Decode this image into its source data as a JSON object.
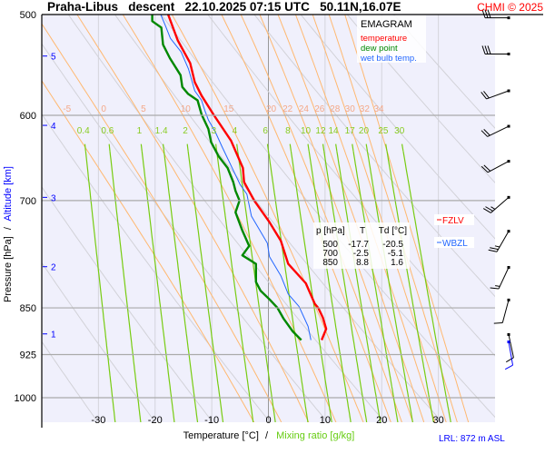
{
  "title": "Praha-Libus   descent   22.10.2025 07:15 UTC   50.11N,16.07E",
  "copyright": "CHMI © 2025",
  "legend": {
    "heading": "EMAGRAM",
    "items": [
      {
        "label": "temperature",
        "color": "#ff0000"
      },
      {
        "label": "dew point",
        "color": "#008800"
      },
      {
        "label": "wet bulb temp.",
        "color": "#2266ff"
      }
    ]
  },
  "table": {
    "headers": [
      "p [hPa]",
      "T",
      "Td [°C]"
    ],
    "rows": [
      [
        "500",
        "-17.7",
        "-20.5"
      ],
      [
        "700",
        "-2.5",
        "-5.1"
      ],
      [
        "850",
        "8.8",
        "1.6"
      ]
    ]
  },
  "levels": {
    "fzlv": {
      "label": "FZLV",
      "color": "#ff0000"
    },
    "wbzl": {
      "label": "WBZL",
      "color": "#2266ff"
    }
  },
  "lrl": "LRL: 872 m ASL",
  "chart_data": {
    "type": "line",
    "title": "Praha-Libus   descent   22.10.2025 07:15 UTC   50.11N,16.07E",
    "xlabel": "Temperature [°C]",
    "xlabel_sep": "/",
    "xlabel2": "Mixing ratio [g/kg]",
    "ylabel": "Pressure [hPa]",
    "ylabel_sep": "/",
    "ylabel2": "Altitude [km]",
    "xlim": [
      -40,
      40
    ],
    "ylim": [
      500,
      1070
    ],
    "y_scale": "log",
    "x_ticks": [
      -30,
      -20,
      -10,
      0,
      10,
      20,
      30
    ],
    "y_ticks": [
      500,
      600,
      700,
      850,
      925,
      1000
    ],
    "altitude_ticks": [
      {
        "km": "5",
        "p": 539
      },
      {
        "km": "4",
        "p": 611
      },
      {
        "km": "3",
        "p": 696
      },
      {
        "km": "2",
        "p": 789
      },
      {
        "km": "1",
        "p": 891
      }
    ],
    "pseudoadiabat_labels": [
      "-5",
      "0",
      "5",
      "10",
      "15",
      "20",
      "22",
      "24",
      "26",
      "28",
      "30",
      "32",
      "34"
    ],
    "mixing_ratio_labels": [
      "0.4",
      "0.6",
      "1",
      "1.4",
      "2",
      "3",
      "4",
      "6",
      "8",
      "10",
      "12",
      "14",
      "17",
      "20",
      "25",
      "30"
    ],
    "dry_adiabats_K": [
      230,
      240,
      250,
      260,
      270,
      280,
      290,
      300,
      310,
      320,
      330,
      340,
      350,
      360
    ],
    "series": [
      {
        "name": "temperature",
        "color": "#ff0000",
        "points": [
          [
            500,
            -17.7
          ],
          [
            524,
            -16.0
          ],
          [
            546,
            -13.8
          ],
          [
            565,
            -13.0
          ],
          [
            579,
            -11.8
          ],
          [
            600,
            -9.6
          ],
          [
            628,
            -6.6
          ],
          [
            660,
            -4.5
          ],
          [
            677,
            -4.3
          ],
          [
            700,
            -2.5
          ],
          [
            728,
            0.2
          ],
          [
            753,
            2.2
          ],
          [
            785,
            3.5
          ],
          [
            813,
            6.6
          ],
          [
            844,
            8.2
          ],
          [
            850,
            8.8
          ],
          [
            865,
            9.6
          ],
          [
            883,
            10.2
          ],
          [
            901,
            9.4
          ]
        ]
      },
      {
        "name": "dew point",
        "color": "#008800",
        "points": [
          [
            500,
            -20.5
          ],
          [
            506,
            -20.5
          ],
          [
            512,
            -18.9
          ],
          [
            528,
            -18.6
          ],
          [
            541,
            -17.4
          ],
          [
            558,
            -15.5
          ],
          [
            570,
            -15.2
          ],
          [
            577,
            -14.2
          ],
          [
            584,
            -12.5
          ],
          [
            599,
            -11.8
          ],
          [
            615,
            -10.6
          ],
          [
            630,
            -10.1
          ],
          [
            646,
            -8.8
          ],
          [
            660,
            -7.2
          ],
          [
            677,
            -6.2
          ],
          [
            688,
            -5.8
          ],
          [
            700,
            -5.1
          ],
          [
            715,
            -5.8
          ],
          [
            739,
            -4.6
          ],
          [
            760,
            -3.4
          ],
          [
            773,
            -4.6
          ],
          [
            785,
            -2.2
          ],
          [
            811,
            -2.2
          ],
          [
            824,
            -1.4
          ],
          [
            837,
            0.2
          ],
          [
            850,
            1.6
          ],
          [
            867,
            2.7
          ],
          [
            887,
            4.3
          ],
          [
            901,
            5.8
          ]
        ]
      },
      {
        "name": "wet bulb temp.",
        "color": "#2266ff",
        "points": [
          [
            500,
            -19.0
          ],
          [
            510,
            -18.2
          ],
          [
            522,
            -17.3
          ],
          [
            535,
            -15.4
          ],
          [
            552,
            -14.1
          ],
          [
            574,
            -13.0
          ],
          [
            584,
            -11.8
          ],
          [
            595,
            -11.2
          ],
          [
            605,
            -10.6
          ],
          [
            618,
            -9.4
          ],
          [
            635,
            -8.2
          ],
          [
            680,
            -5.0
          ],
          [
            692,
            -3.8
          ],
          [
            720,
            -3.0
          ],
          [
            756,
            -0.2
          ],
          [
            775,
            0.2
          ],
          [
            802,
            2.2
          ],
          [
            829,
            3.5
          ],
          [
            848,
            5.4
          ],
          [
            879,
            7.0
          ],
          [
            901,
            7.5
          ]
        ]
      }
    ],
    "wind_barbs": [
      {
        "p": 503,
        "dir": 270,
        "kt": 30
      },
      {
        "p": 537,
        "dir": 270,
        "kt": 30
      },
      {
        "p": 574,
        "dir": 250,
        "kt": 20
      },
      {
        "p": 612,
        "dir": 244,
        "kt": 20
      },
      {
        "p": 652,
        "dir": 242,
        "kt": 20
      },
      {
        "p": 696,
        "dir": 229,
        "kt": 25
      },
      {
        "p": 740,
        "dir": 210,
        "kt": 25
      },
      {
        "p": 790,
        "dir": 205,
        "kt": 15
      },
      {
        "p": 838,
        "dir": 195,
        "kt": 10
      },
      {
        "p": 892,
        "dir": 168,
        "kt": 10
      },
      {
        "p": 904,
        "dir": 170,
        "kt": 10,
        "color": "#0000ff"
      }
    ]
  }
}
